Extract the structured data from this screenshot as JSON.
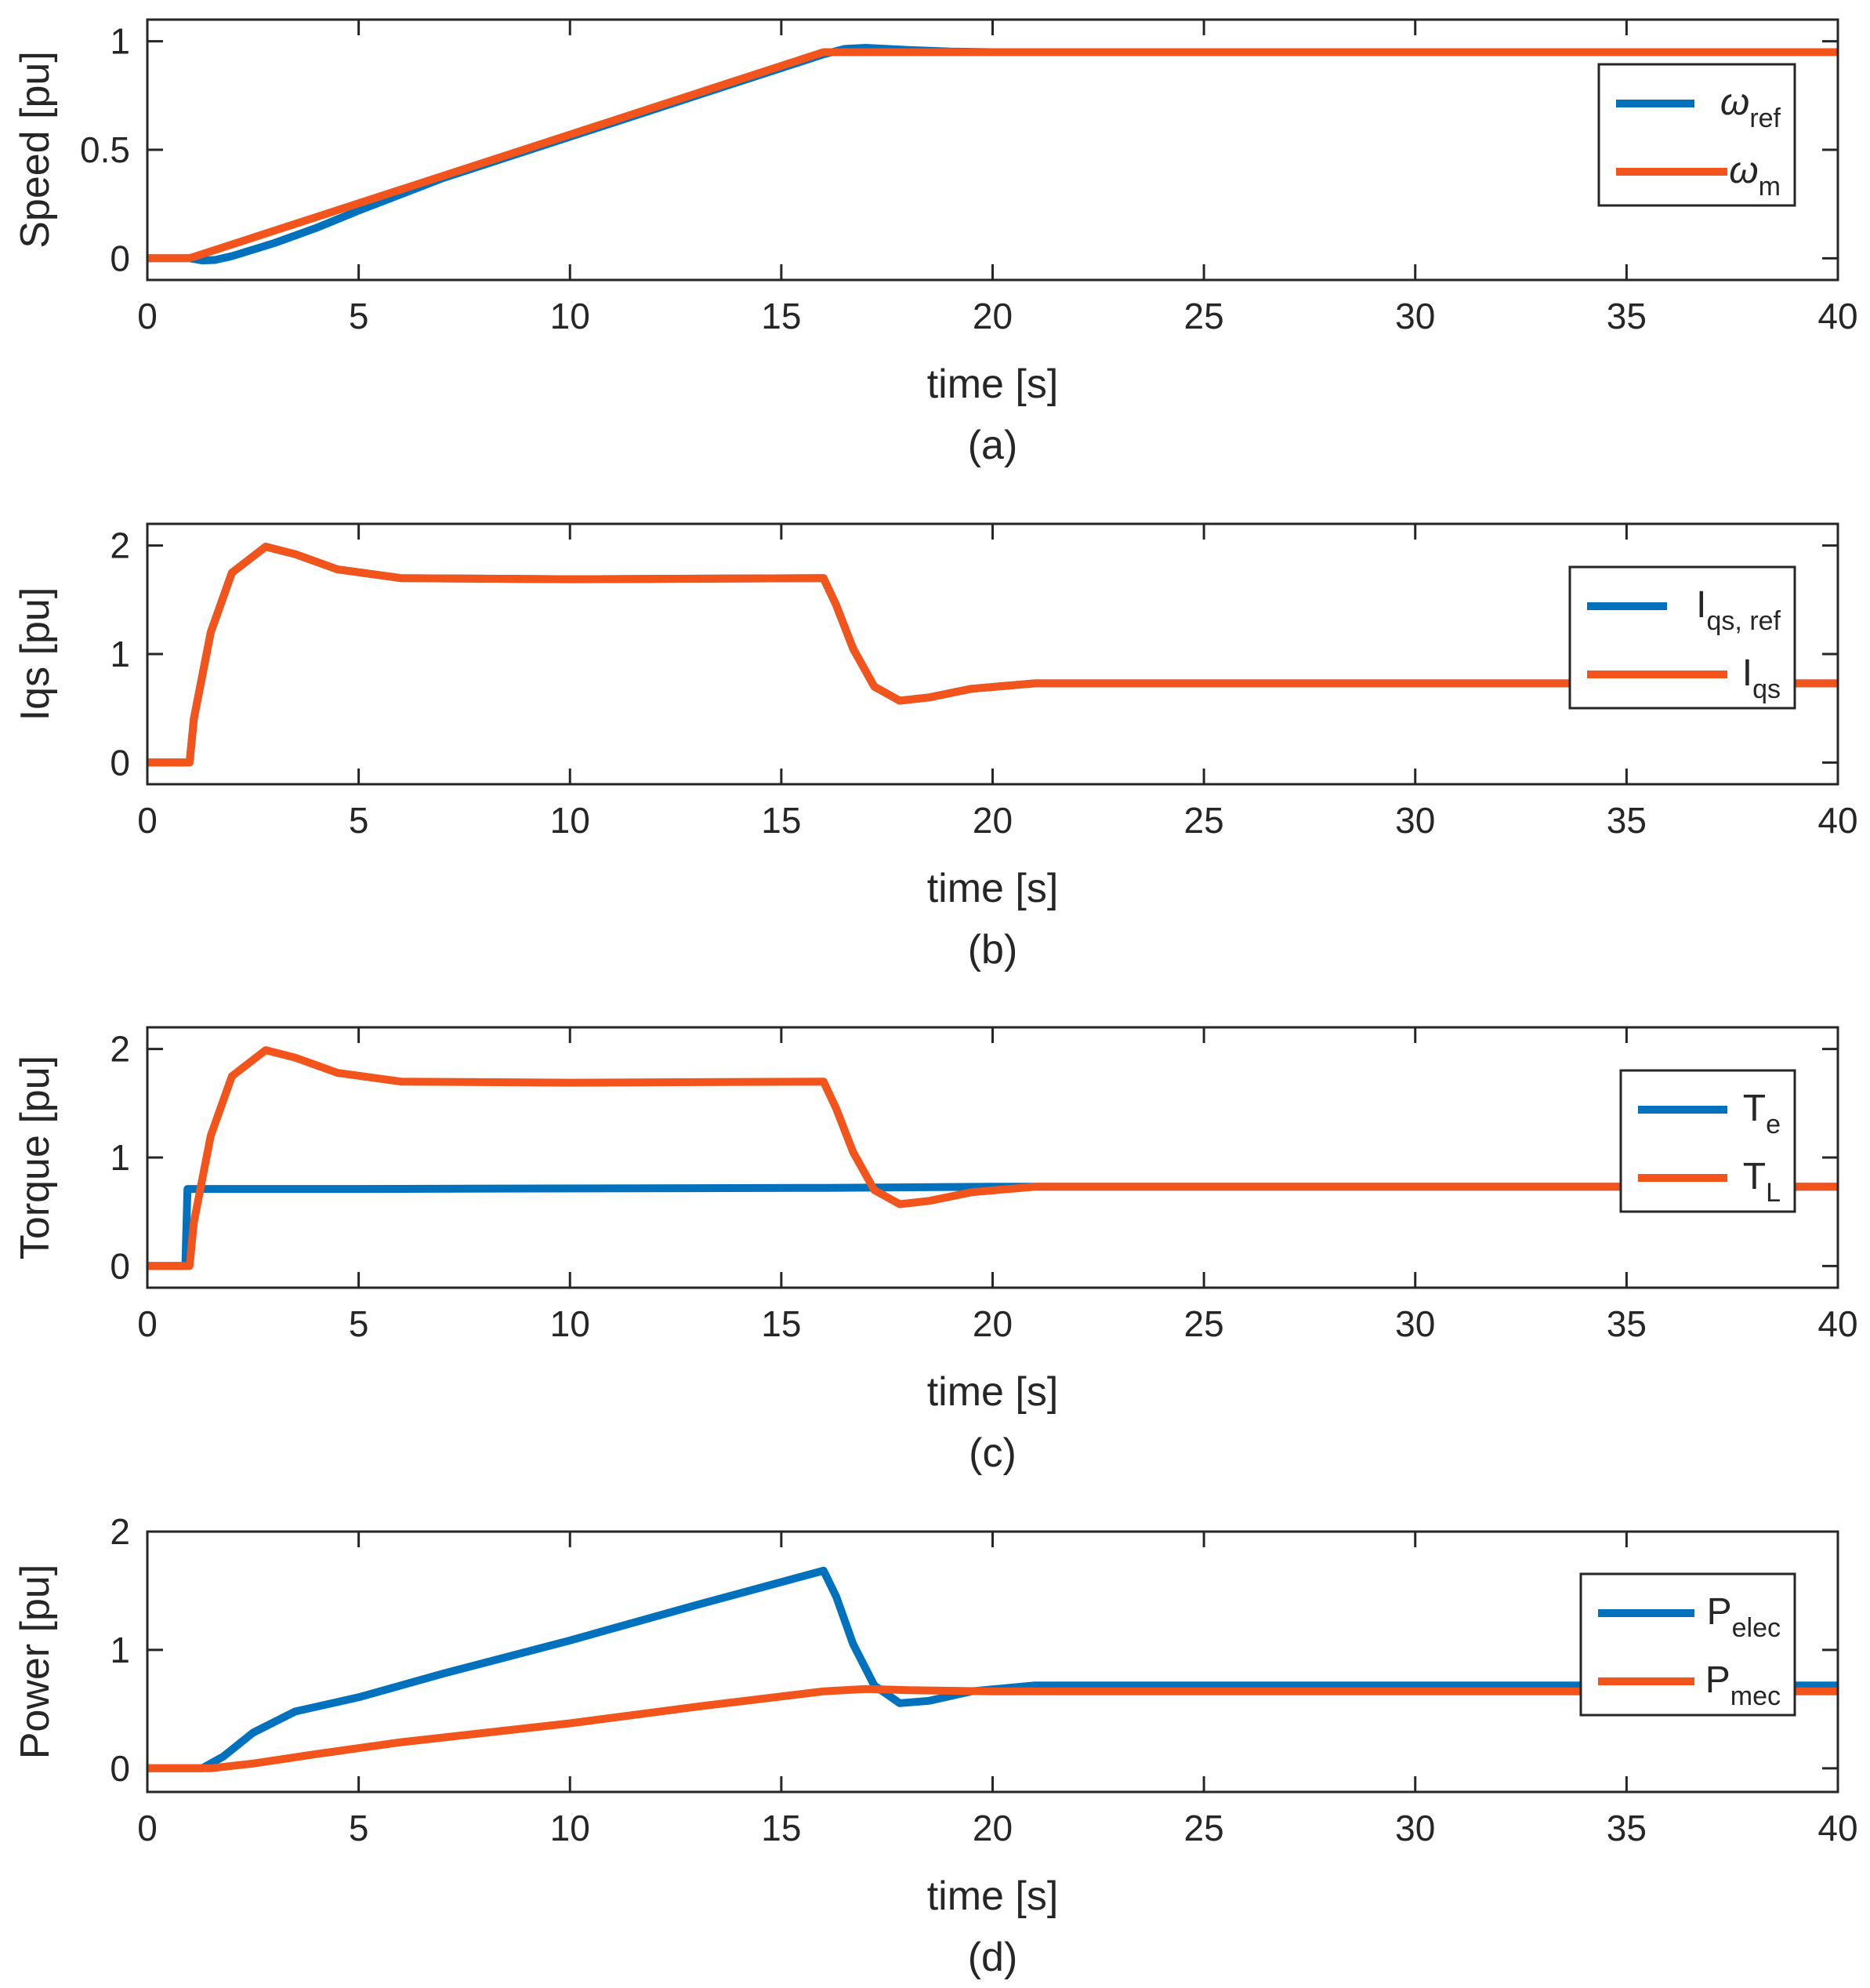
{
  "colors": {
    "blue": "#0072BD",
    "orange": "#F2541B",
    "axis": "#262626",
    "background": "#FFFFFF"
  },
  "chart_data": [
    {
      "type": "line",
      "caption": "(a)",
      "xlabel": "time [s]",
      "ylabel": "Speed [pu]",
      "xlim": [
        0,
        40
      ],
      "ylim": [
        -0.1,
        1.1
      ],
      "xticks": [
        0,
        5,
        10,
        15,
        20,
        25,
        30,
        35,
        40
      ],
      "yticks": [
        0,
        0.5,
        1
      ],
      "ytick_labels": [
        "0",
        "0.5",
        "1"
      ],
      "legend_location": "top-right",
      "series": [
        {
          "name": "ω_ref",
          "legend_main": "ω",
          "legend_sub": "ref",
          "color": "blue",
          "points": [
            [
              0,
              0
            ],
            [
              1,
              0
            ],
            [
              1.3,
              -0.01
            ],
            [
              1.6,
              -0.008
            ],
            [
              2,
              0.01
            ],
            [
              3,
              0.07
            ],
            [
              4,
              0.14
            ],
            [
              5,
              0.22
            ],
            [
              7,
              0.37
            ],
            [
              10,
              0.56
            ],
            [
              13,
              0.75
            ],
            [
              16,
              0.94
            ],
            [
              16.5,
              0.965
            ],
            [
              17,
              0.97
            ],
            [
              18,
              0.96
            ],
            [
              19,
              0.953
            ],
            [
              20,
              0.95
            ],
            [
              40,
              0.95
            ]
          ]
        },
        {
          "name": "ω_m",
          "legend_main": "ω",
          "legend_sub": "m",
          "color": "orange",
          "points": [
            [
              0,
              0
            ],
            [
              1,
              0
            ],
            [
              16,
              0.95
            ],
            [
              40,
              0.95
            ]
          ]
        }
      ]
    },
    {
      "type": "line",
      "caption": "(b)",
      "xlabel": "time [s]",
      "ylabel": "Iqs [pu]",
      "xlim": [
        0,
        40
      ],
      "ylim": [
        -0.2,
        2.2
      ],
      "xticks": [
        0,
        5,
        10,
        15,
        20,
        25,
        30,
        35,
        40
      ],
      "yticks": [
        0,
        1,
        2
      ],
      "ytick_labels": [
        "0",
        "1",
        "2"
      ],
      "legend_location": "right",
      "series": [
        {
          "name": "I_qs,ref",
          "legend_main": "I",
          "legend_sub": "qs, ref",
          "color": "blue",
          "points": [
            [
              0,
              0
            ],
            [
              1,
              0
            ],
            [
              1.1,
              0.4
            ],
            [
              1.5,
              1.2
            ],
            [
              2,
              1.75
            ],
            [
              2.8,
              1.99
            ],
            [
              3.5,
              1.92
            ],
            [
              4.5,
              1.78
            ],
            [
              6,
              1.7
            ],
            [
              10,
              1.69
            ],
            [
              16,
              1.7
            ],
            [
              16.3,
              1.45
            ],
            [
              16.7,
              1.05
            ],
            [
              17.2,
              0.7
            ],
            [
              17.8,
              0.57
            ],
            [
              18.5,
              0.6
            ],
            [
              19.5,
              0.68
            ],
            [
              21,
              0.73
            ],
            [
              40,
              0.73
            ]
          ]
        },
        {
          "name": "I_qs",
          "legend_main": "I",
          "legend_sub": "qs",
          "color": "orange",
          "points": [
            [
              0,
              0
            ],
            [
              1,
              0
            ],
            [
              1.1,
              0.4
            ],
            [
              1.5,
              1.2
            ],
            [
              2,
              1.75
            ],
            [
              2.8,
              1.99
            ],
            [
              3.5,
              1.92
            ],
            [
              4.5,
              1.78
            ],
            [
              6,
              1.7
            ],
            [
              10,
              1.69
            ],
            [
              16,
              1.7
            ],
            [
              16.3,
              1.45
            ],
            [
              16.7,
              1.05
            ],
            [
              17.2,
              0.7
            ],
            [
              17.8,
              0.57
            ],
            [
              18.5,
              0.6
            ],
            [
              19.5,
              0.68
            ],
            [
              21,
              0.73
            ],
            [
              40,
              0.73
            ]
          ]
        }
      ]
    },
    {
      "type": "line",
      "caption": "(c)",
      "xlabel": "time [s]",
      "ylabel": "Torque [pu]",
      "xlim": [
        0,
        40
      ],
      "ylim": [
        -0.2,
        2.2
      ],
      "xticks": [
        0,
        5,
        10,
        15,
        20,
        25,
        30,
        35,
        40
      ],
      "yticks": [
        0,
        1,
        2
      ],
      "ytick_labels": [
        "0",
        "1",
        "2"
      ],
      "legend_location": "right",
      "series": [
        {
          "name": "T_e",
          "legend_main": "T",
          "legend_sub": "e",
          "color": "blue",
          "points": [
            [
              0,
              0
            ],
            [
              0.9,
              0
            ],
            [
              0.95,
              0.71
            ],
            [
              5,
              0.71
            ],
            [
              16,
              0.72
            ],
            [
              20,
              0.73
            ],
            [
              40,
              0.73
            ]
          ]
        },
        {
          "name": "T_L",
          "legend_main": "T",
          "legend_sub": "L",
          "color": "orange",
          "points": [
            [
              0,
              0
            ],
            [
              1,
              0
            ],
            [
              1.1,
              0.4
            ],
            [
              1.5,
              1.2
            ],
            [
              2,
              1.75
            ],
            [
              2.8,
              1.99
            ],
            [
              3.5,
              1.92
            ],
            [
              4.5,
              1.78
            ],
            [
              6,
              1.7
            ],
            [
              10,
              1.69
            ],
            [
              16,
              1.7
            ],
            [
              16.3,
              1.45
            ],
            [
              16.7,
              1.05
            ],
            [
              17.2,
              0.7
            ],
            [
              17.8,
              0.57
            ],
            [
              18.5,
              0.6
            ],
            [
              19.5,
              0.68
            ],
            [
              21,
              0.73
            ],
            [
              40,
              0.73
            ]
          ]
        }
      ]
    },
    {
      "type": "line",
      "caption": "(d)",
      "xlabel": "time [s]",
      "ylabel": "Power [pu]",
      "xlim": [
        0,
        40
      ],
      "ylim": [
        -0.2,
        2
      ],
      "xticks": [
        0,
        5,
        10,
        15,
        20,
        25,
        30,
        35,
        40
      ],
      "yticks": [
        0,
        1,
        2
      ],
      "ytick_labels": [
        "0",
        "1",
        "2"
      ],
      "legend_location": "right",
      "series": [
        {
          "name": "P_elec",
          "legend_main": "P",
          "legend_sub": "elec",
          "color": "blue",
          "points": [
            [
              0,
              0
            ],
            [
              1,
              0
            ],
            [
              1.3,
              0
            ],
            [
              1.8,
              0.1
            ],
            [
              2.5,
              0.3
            ],
            [
              3.5,
              0.48
            ],
            [
              5,
              0.6
            ],
            [
              7,
              0.8
            ],
            [
              10,
              1.08
            ],
            [
              13,
              1.38
            ],
            [
              16,
              1.67
            ],
            [
              16.3,
              1.45
            ],
            [
              16.7,
              1.05
            ],
            [
              17.2,
              0.7
            ],
            [
              17.8,
              0.55
            ],
            [
              18.5,
              0.57
            ],
            [
              19.5,
              0.65
            ],
            [
              21,
              0.7
            ],
            [
              40,
              0.7
            ]
          ]
        },
        {
          "name": "P_mec",
          "legend_main": "P",
          "legend_sub": "mec",
          "color": "orange",
          "points": [
            [
              0,
              0
            ],
            [
              1,
              0
            ],
            [
              1.5,
              0
            ],
            [
              2.5,
              0.04
            ],
            [
              4,
              0.12
            ],
            [
              6,
              0.22
            ],
            [
              10,
              0.38
            ],
            [
              13,
              0.52
            ],
            [
              16,
              0.65
            ],
            [
              17,
              0.67
            ],
            [
              18,
              0.66
            ],
            [
              20,
              0.65
            ],
            [
              40,
              0.65
            ]
          ]
        }
      ]
    }
  ]
}
